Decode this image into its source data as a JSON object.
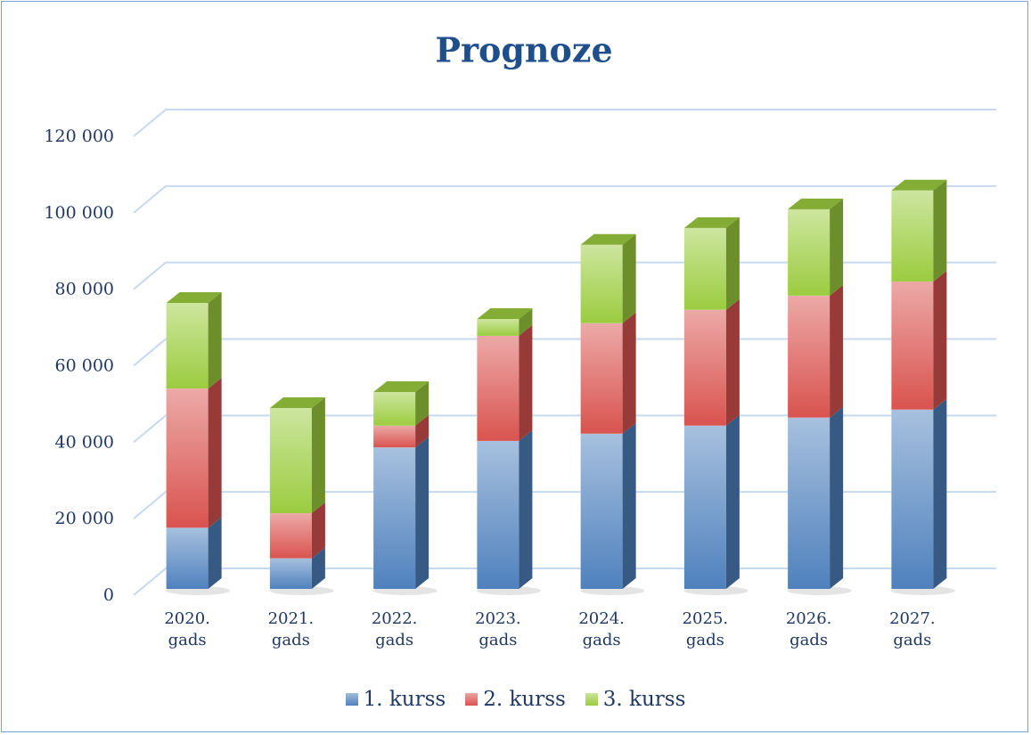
{
  "chart_data": {
    "type": "bar3d_stacked",
    "title": "Prognoze",
    "categories": [
      "2020.\ngads",
      "2021.\ngads",
      "2022.\ngads",
      "2023.\ngads",
      "2024.\ngads",
      "2025.\ngads",
      "2026.\ngads",
      "2027.\ngads"
    ],
    "series": [
      {
        "name": "1. kurss",
        "color": "#4f81bd",
        "values": [
          16000,
          8000,
          37000,
          38700,
          40600,
          42700,
          44800,
          46900
        ]
      },
      {
        "name": "2. kurss",
        "color": "#d9534f",
        "values": [
          36400,
          11800,
          5700,
          27500,
          28900,
          30300,
          31900,
          33500
        ]
      },
      {
        "name": "3. kurss",
        "color": "#9bcc3f",
        "values": [
          22400,
          27500,
          8800,
          4400,
          20500,
          21400,
          22600,
          23800
        ]
      }
    ],
    "ylim": [
      0,
      120000
    ],
    "yticks": [
      {
        "value": 0,
        "label": "0"
      },
      {
        "value": 20000,
        "label": "20 000"
      },
      {
        "value": 40000,
        "label": "40 000"
      },
      {
        "value": 60000,
        "label": "60 000"
      },
      {
        "value": 80000,
        "label": "80 000"
      },
      {
        "value": 100000,
        "label": "100 000"
      },
      {
        "value": 120000,
        "label": "120 000"
      }
    ],
    "grid": true,
    "legend": "bottom"
  }
}
